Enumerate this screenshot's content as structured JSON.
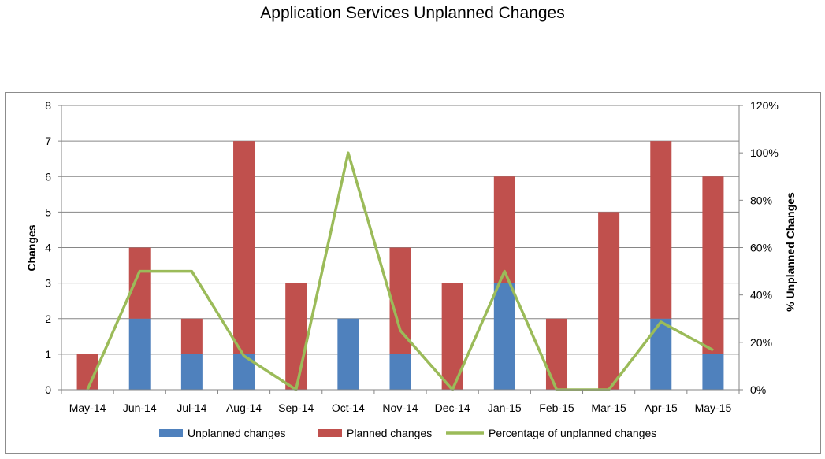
{
  "chart_data": {
    "type": "bar",
    "stacked": true,
    "title": "Application Services Unplanned Changes",
    "ylabel": "Changes",
    "y2label": "% Unplanned Changes",
    "ylim": [
      0,
      8
    ],
    "y2lim": [
      0,
      120
    ],
    "yticks": [
      "0",
      "1",
      "2",
      "3",
      "4",
      "5",
      "6",
      "7",
      "8"
    ],
    "y2ticks": [
      "0%",
      "20%",
      "40%",
      "60%",
      "80%",
      "100%",
      "120%"
    ],
    "categories": [
      "May-14",
      "Jun-14",
      "Jul-14",
      "Aug-14",
      "Sep-14",
      "Oct-14",
      "Nov-14",
      "Dec-14",
      "Jan-15",
      "Feb-15",
      "Mar-15",
      "Apr-15",
      "May-15"
    ],
    "series": [
      {
        "name": "Unplanned changes",
        "kind": "bar",
        "color": "#4f81bd",
        "values": [
          0,
          2,
          1,
          1,
          0,
          2,
          1,
          0,
          3,
          0,
          0,
          2,
          1
        ]
      },
      {
        "name": "Planned changes",
        "kind": "bar",
        "color": "#c0504d",
        "values": [
          1,
          2,
          1,
          6,
          3,
          0,
          3,
          3,
          3,
          2,
          5,
          5,
          5
        ]
      },
      {
        "name": "Percentage of unplanned changes",
        "kind": "line",
        "axis": "right",
        "color": "#9bbb59",
        "values": [
          0,
          50,
          50,
          14.3,
          0,
          100,
          25,
          0,
          50,
          0,
          0,
          28.6,
          16.7
        ]
      }
    ],
    "grid": true,
    "legend": "bottom"
  }
}
